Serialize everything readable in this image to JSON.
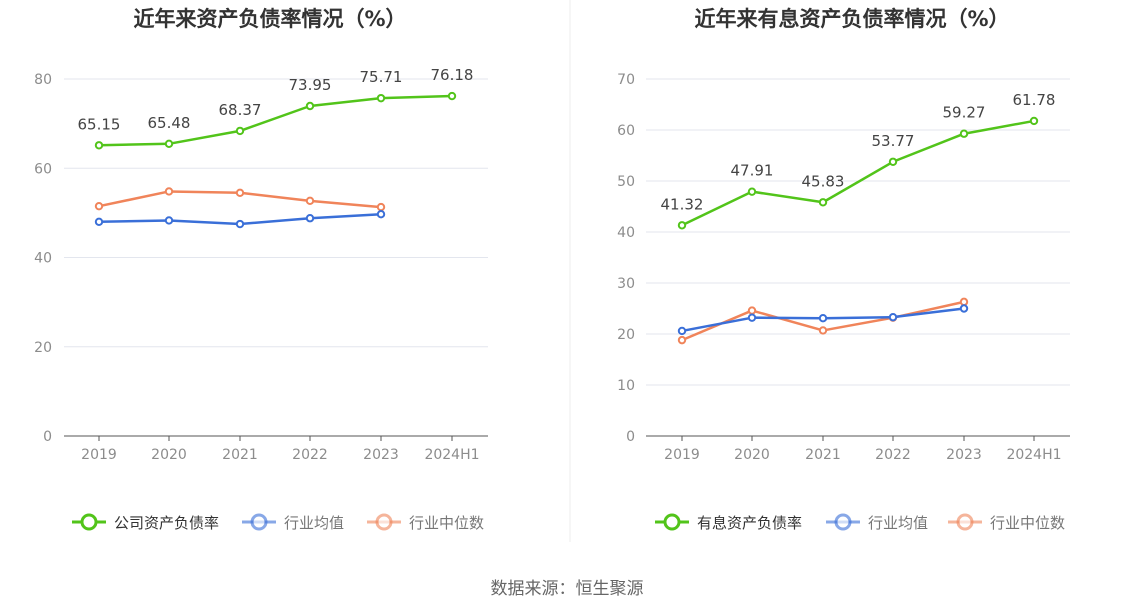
{
  "colors": {
    "company": "#52c41a",
    "industry_avg": "#3a6fd8",
    "industry_median": "#f0845a",
    "grid": "#e3e6ee",
    "axis": "#555555",
    "tick": "#8c8c8c",
    "label": "#444444",
    "title": "#333333"
  },
  "chart_data": [
    {
      "type": "line",
      "title": "近年来资产负债率情况（%）",
      "categories": [
        "2019",
        "2020",
        "2021",
        "2022",
        "2023",
        "2024H1"
      ],
      "ylim": [
        0,
        80
      ],
      "yticks": [
        0,
        20,
        40,
        60,
        80
      ],
      "series": [
        {
          "name": "公司资产负债率",
          "color_key": "company",
          "values": [
            65.15,
            65.48,
            68.37,
            73.95,
            75.71,
            76.18
          ],
          "labels": [
            "65.15",
            "65.48",
            "68.37",
            "73.95",
            "75.71",
            "76.18"
          ]
        },
        {
          "name": "行业均值",
          "color_key": "industry_avg",
          "values": [
            48.0,
            48.3,
            47.5,
            48.8,
            49.7,
            null
          ]
        },
        {
          "name": "行业中位数",
          "color_key": "industry_median",
          "values": [
            51.5,
            54.8,
            54.5,
            52.7,
            51.3,
            null
          ]
        }
      ]
    },
    {
      "type": "line",
      "title": "近年来有息资产负债率情况（%）",
      "categories": [
        "2019",
        "2020",
        "2021",
        "2022",
        "2023",
        "2024H1"
      ],
      "ylim": [
        0,
        70
      ],
      "yticks": [
        0,
        10,
        20,
        30,
        40,
        50,
        60,
        70
      ],
      "series": [
        {
          "name": "有息资产负债率",
          "color_key": "company",
          "values": [
            41.32,
            47.91,
            45.83,
            53.77,
            59.27,
            61.78
          ],
          "labels": [
            "41.32",
            "47.91",
            "45.83",
            "53.77",
            "59.27",
            "61.78"
          ]
        },
        {
          "name": "行业均值",
          "color_key": "industry_avg",
          "values": [
            20.6,
            23.2,
            23.1,
            23.3,
            25.0,
            null
          ]
        },
        {
          "name": "行业中位数",
          "color_key": "industry_median",
          "values": [
            18.8,
            24.6,
            20.7,
            23.2,
            26.3,
            null
          ]
        }
      ]
    }
  ],
  "footer": {
    "source": "数据来源：恒生聚源"
  }
}
